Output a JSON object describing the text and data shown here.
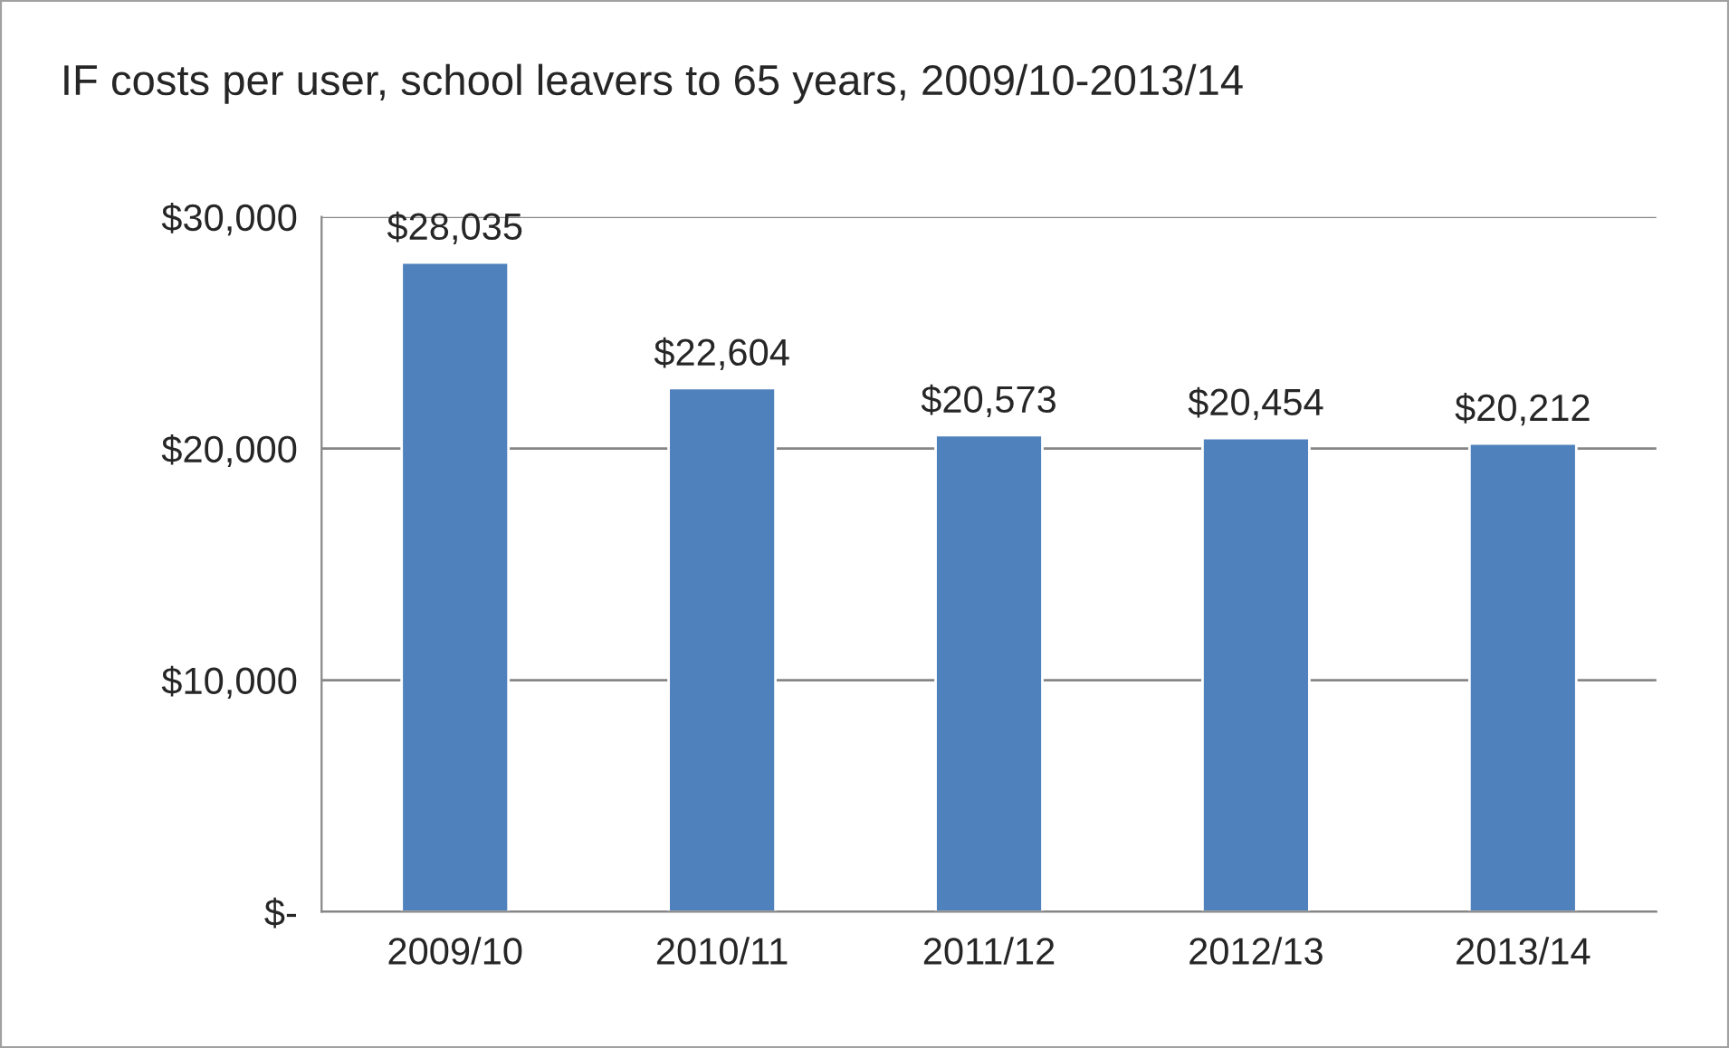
{
  "chart_data": {
    "type": "bar",
    "title": "IF costs per user, school leavers to 65 years, 2009/10-2013/14",
    "categories": [
      "2009/10",
      "2010/11",
      "2011/12",
      "2012/13",
      "2013/14"
    ],
    "values": [
      28035,
      22604,
      20573,
      20454,
      20212
    ],
    "value_labels": [
      "$28,035",
      "$22,604",
      "$20,573",
      "$20,454",
      "$20,212"
    ],
    "color": "#4f81bd",
    "ylim": [
      0,
      30000
    ],
    "yticks": [
      {
        "value": 0,
        "label": "$-"
      },
      {
        "value": 10000,
        "label": "$10,000"
      },
      {
        "value": 20000,
        "label": "$20,000"
      },
      {
        "value": 30000,
        "label": "$30,000"
      }
    ],
    "grid": "y",
    "legend": false
  }
}
